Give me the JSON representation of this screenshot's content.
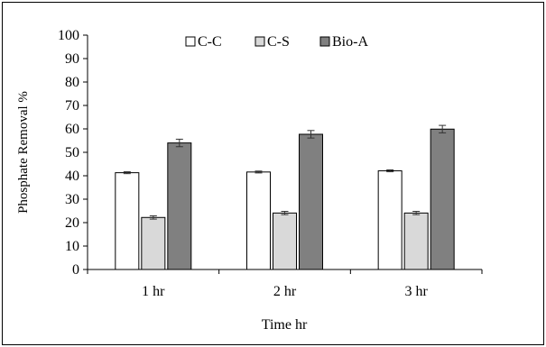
{
  "chart_data": {
    "type": "bar",
    "xlabel": "Time hr",
    "ylabel": "Phosphate Removal %",
    "categories": [
      "1 hr",
      "2 hr",
      "3 hr"
    ],
    "ylim": [
      0,
      100
    ],
    "yticks": [
      0,
      10,
      20,
      30,
      40,
      50,
      60,
      70,
      80,
      90,
      100
    ],
    "grid": false,
    "legend_position": "top",
    "series": [
      {
        "name": "C-C",
        "values": [
          41.3,
          41.6,
          42.1
        ],
        "errors": [
          0.4,
          0.4,
          0.4
        ],
        "color": "#ffffff"
      },
      {
        "name": "C-S",
        "values": [
          22.2,
          24.1,
          24.1
        ],
        "errors": [
          0.7,
          0.7,
          0.7
        ],
        "color": "#d9d9d9"
      },
      {
        "name": "Bio-A",
        "values": [
          54.0,
          57.7,
          59.9
        ],
        "errors": [
          1.6,
          1.6,
          1.6
        ],
        "color": "#808080"
      }
    ]
  }
}
